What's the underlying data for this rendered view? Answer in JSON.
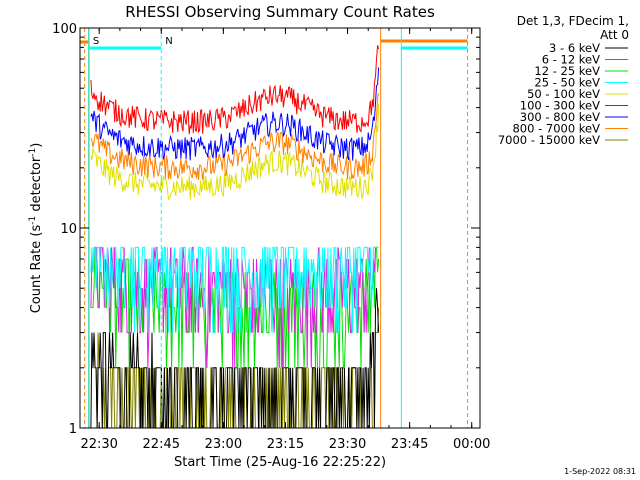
{
  "chart_data": {
    "type": "line",
    "title": "RHESSI Observing Summary Count Rates",
    "xlabel": "Start Time (25-Aug-16 22:25:22)",
    "ylabel_main": "Count Rate (s",
    "ylabel_sup1": "-1",
    "ylabel_mid": " detector",
    "ylabel_sup2": "-1",
    "ylabel_end": ")",
    "y_scale": "log",
    "ylim": [
      1,
      100
    ],
    "xlim": [
      "22:25:22",
      "00:02:00"
    ],
    "x_ticks": [
      "22:30",
      "22:45",
      "23:00",
      "23:15",
      "23:30",
      "23:45",
      "00:00"
    ],
    "y_ticks": [
      "1",
      "10",
      "100"
    ],
    "legend_title_1": "Det 1,3, FDecim 1,",
    "legend_title_2": "Att 0",
    "legend_position": "top-right",
    "series": [
      {
        "name": "3 - 6 keV",
        "color": "#000000",
        "level": 1.6
      },
      {
        "name": "6 - 12 keV",
        "color": "#e020e0",
        "level": 5.0
      },
      {
        "name": "12 - 25 keV",
        "color": "#00e000",
        "level": 4.2
      },
      {
        "name": "25 - 50 keV",
        "color": "#00ffff",
        "level": 6.5
      },
      {
        "name": "50 - 100 keV",
        "color": "#e0e000",
        "level": 16
      },
      {
        "name": "100 - 300 keV",
        "color": "#ff0000",
        "level": 34
      },
      {
        "name": "300 - 800 keV",
        "color": "#0000ff",
        "level": 25
      },
      {
        "name": "800 - 7000 keV",
        "color": "#ff8000",
        "level": 20
      },
      {
        "name": "7000 - 15000 keV",
        "color": "#808000",
        "level": 1.4
      }
    ],
    "annotations": [
      {
        "label": "S",
        "color": "#ff8000",
        "time": "22:27:30"
      },
      {
        "label": "N",
        "color": "#00ffff",
        "time": "22:45:00"
      }
    ],
    "saa_span": [
      "22:26:30",
      "22:27:30"
    ],
    "night_span": [
      "22:27:30",
      "22:45:00"
    ],
    "attenuator_span": [
      "23:38:00",
      "23:59:00"
    ],
    "night2_span": [
      "23:43:00",
      "23:59:00"
    ]
  },
  "footer": {
    "timestamp": "1-Sep-2022 08:31"
  }
}
